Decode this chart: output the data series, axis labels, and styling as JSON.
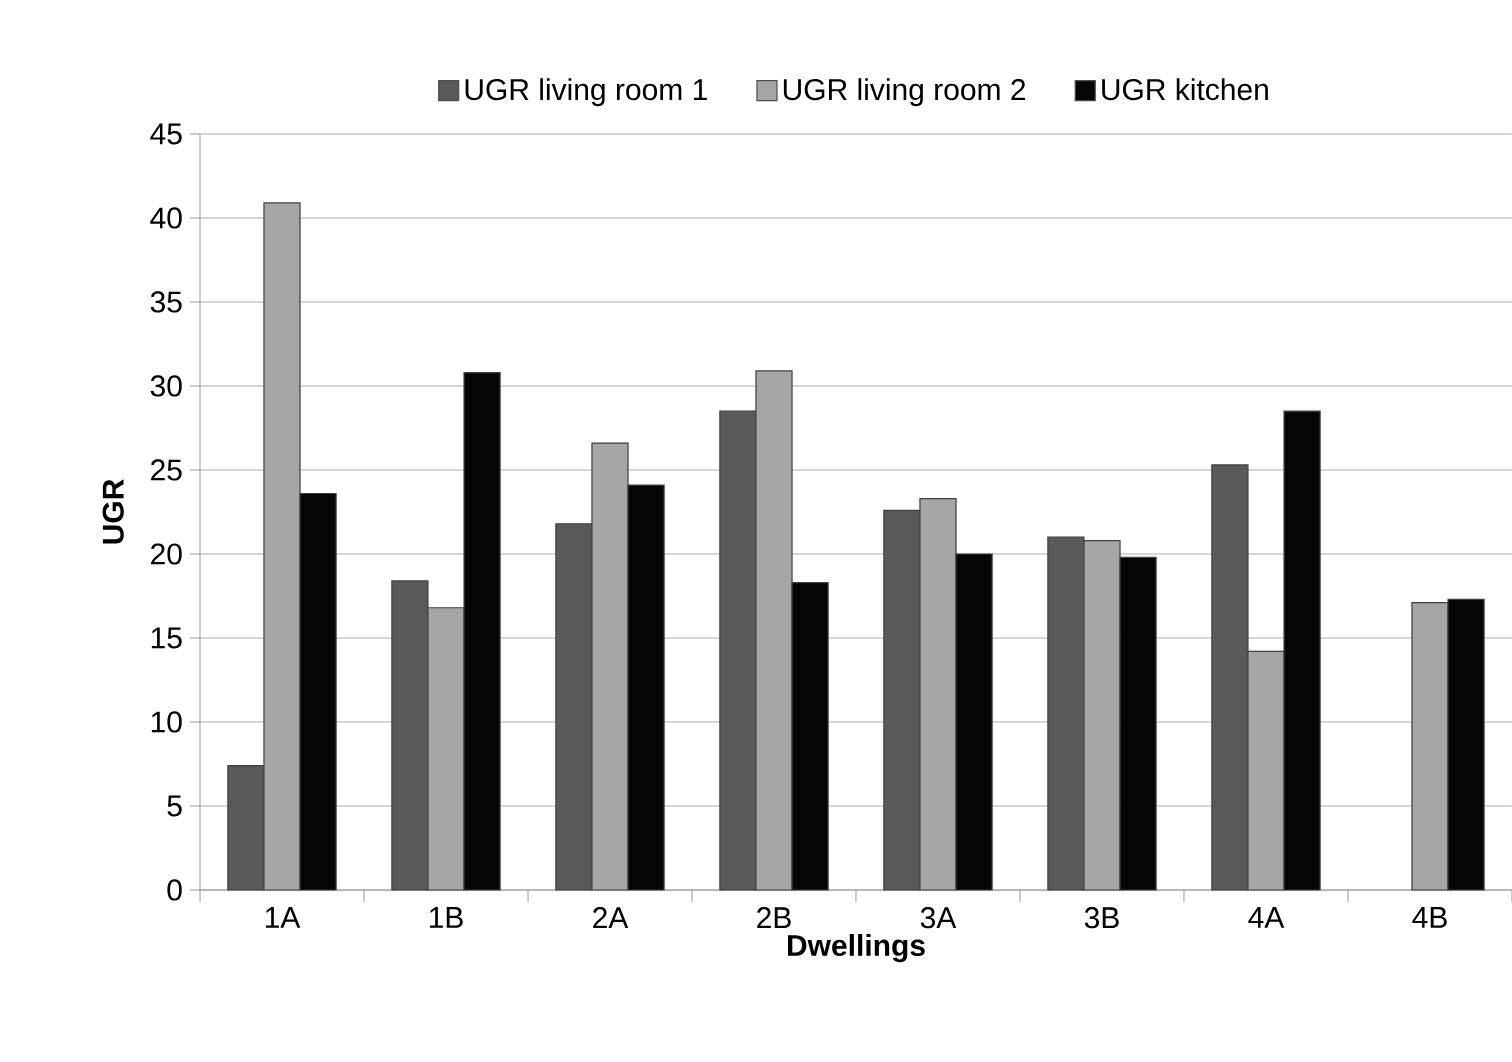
{
  "chart_data": {
    "type": "bar",
    "xlabel": "Dwellings",
    "ylabel": "UGR",
    "categories": [
      "1A",
      "1B",
      "2A",
      "2B",
      "3A",
      "3B",
      "4A",
      "4B"
    ],
    "series": [
      {
        "name": "UGR living room 1",
        "color": "#595959",
        "values": [
          7.4,
          18.4,
          21.8,
          28.5,
          22.6,
          21.0,
          25.3,
          null
        ]
      },
      {
        "name": "UGR living room 2",
        "color": "#a6a6a6",
        "values": [
          40.9,
          16.8,
          26.6,
          30.9,
          23.3,
          20.8,
          14.2,
          17.1
        ]
      },
      {
        "name": "UGR kitchen",
        "color": "#050505",
        "values": [
          23.6,
          30.8,
          24.1,
          18.3,
          20.0,
          19.8,
          28.5,
          17.3
        ]
      }
    ],
    "ylim": [
      0,
      45
    ],
    "yticks": [
      0,
      5,
      10,
      15,
      20,
      25,
      30,
      35,
      40,
      45
    ],
    "grid": "y",
    "legend": "top"
  }
}
